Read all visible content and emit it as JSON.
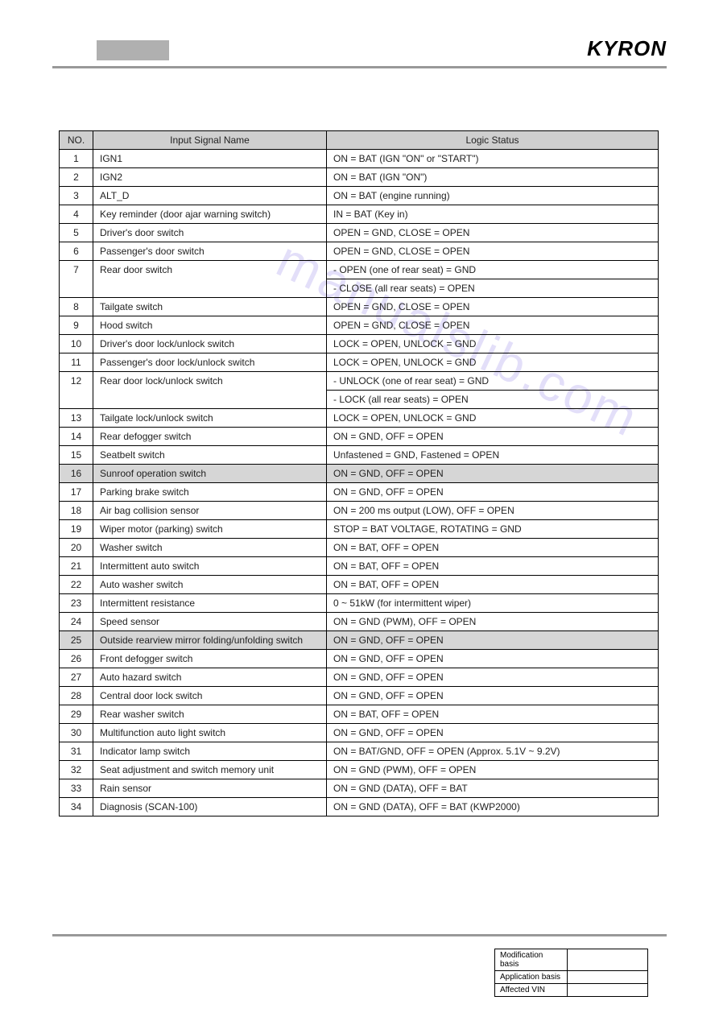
{
  "header": {
    "brand": "KYRON"
  },
  "table": {
    "columns": [
      "NO.",
      "Input Signal Name",
      "Logic Status"
    ],
    "rows": [
      {
        "no": "1",
        "name": "IGN1",
        "status": "ON = BAT (IGN \"ON\" or \"START\")"
      },
      {
        "no": "2",
        "name": "IGN2",
        "status": "ON = BAT (IGN \"ON\")"
      },
      {
        "no": "3",
        "name": "ALT_D",
        "status": "ON = BAT (engine running)"
      },
      {
        "no": "4",
        "name": "Key reminder (door ajar warning switch)",
        "status": "IN = BAT (Key in)"
      },
      {
        "no": "5",
        "name": "Driver's door switch",
        "status": "OPEN = GND, CLOSE = OPEN"
      },
      {
        "no": "6",
        "name": "Passenger's door switch",
        "status": "OPEN = GND, CLOSE = OPEN"
      },
      {
        "no": "7",
        "name": "Rear door switch",
        "status": "- OPEN (one of rear seat) = GND",
        "hasCont": true
      },
      {
        "no": "",
        "name": "",
        "status": "- CLOSE (all rear seats) = OPEN",
        "cont": true
      },
      {
        "no": "8",
        "name": "Tailgate switch",
        "status": "OPEN = GND, CLOSE = OPEN"
      },
      {
        "no": "9",
        "name": "Hood switch",
        "status": "OPEN = GND, CLOSE = OPEN"
      },
      {
        "no": "10",
        "name": "Driver's door lock/unlock switch",
        "status": "LOCK = OPEN, UNLOCK = GND"
      },
      {
        "no": "11",
        "name": "Passenger's door lock/unlock switch",
        "status": "LOCK = OPEN, UNLOCK = GND"
      },
      {
        "no": "12",
        "name": "Rear door lock/unlock switch",
        "status": "- UNLOCK (one of rear seat) = GND",
        "hasCont": true
      },
      {
        "no": "",
        "name": "",
        "status": "- LOCK (all rear seats) = OPEN",
        "cont": true
      },
      {
        "no": "13",
        "name": "Tailgate lock/unlock switch",
        "status": "LOCK = OPEN, UNLOCK = GND"
      },
      {
        "no": "14",
        "name": "Rear defogger switch",
        "status": "ON = GND, OFF = OPEN"
      },
      {
        "no": "15",
        "name": "Seatbelt switch",
        "status": "Unfastened = GND, Fastened = OPEN"
      },
      {
        "no": "16",
        "name": "Sunroof operation switch",
        "status": "ON = GND, OFF = OPEN",
        "shaded": true
      },
      {
        "no": "17",
        "name": "Parking brake switch",
        "status": "ON = GND, OFF = OPEN"
      },
      {
        "no": "18",
        "name": "Air bag collision sensor",
        "status": "ON = 200 ms output (LOW), OFF = OPEN"
      },
      {
        "no": "19",
        "name": "Wiper motor (parking) switch",
        "status": "STOP = BAT VOLTAGE, ROTATING = GND"
      },
      {
        "no": "20",
        "name": "Washer switch",
        "status": "ON = BAT, OFF = OPEN"
      },
      {
        "no": "21",
        "name": "Intermittent auto switch",
        "status": "ON = BAT, OFF = OPEN"
      },
      {
        "no": "22",
        "name": "Auto washer switch",
        "status": "ON = BAT, OFF = OPEN"
      },
      {
        "no": "23",
        "name": "Intermittent resistance",
        "status": "0 ~ 51kW  (for intermittent wiper)"
      },
      {
        "no": "24",
        "name": "Speed sensor",
        "status": "ON = GND (PWM), OFF = OPEN"
      },
      {
        "no": "25",
        "name": "Outside rearview mirror folding/unfolding switch",
        "status": "ON = GND, OFF = OPEN",
        "shaded": true
      },
      {
        "no": "26",
        "name": "Front defogger switch",
        "status": "ON = GND, OFF = OPEN"
      },
      {
        "no": "27",
        "name": "Auto hazard switch",
        "status": "ON = GND, OFF = OPEN"
      },
      {
        "no": "28",
        "name": "Central door lock switch",
        "status": "ON = GND, OFF = OPEN"
      },
      {
        "no": "29",
        "name": "Rear washer switch",
        "status": "ON = BAT, OFF = OPEN"
      },
      {
        "no": "30",
        "name": "Multifunction auto light switch",
        "status": "ON = GND, OFF = OPEN"
      },
      {
        "no": "31",
        "name": "Indicator lamp switch",
        "status": "ON = BAT/GND, OFF = OPEN (Approx. 5.1V ~ 9.2V)"
      },
      {
        "no": "32",
        "name": "Seat adjustment and switch memory unit",
        "status": "ON = GND (PWM), OFF = OPEN"
      },
      {
        "no": "33",
        "name": "Rain sensor",
        "status": "ON = GND (DATA), OFF = BAT"
      },
      {
        "no": "34",
        "name": "Diagnosis (SCAN-100)",
        "status": "ON = GND (DATA), OFF = BAT (KWP2000)"
      }
    ]
  },
  "watermark": "manualslib.com",
  "footer": {
    "rows": [
      {
        "label": "Modification basis",
        "value": ""
      },
      {
        "label": "Application basis",
        "value": ""
      },
      {
        "label": "Affected VIN",
        "value": ""
      }
    ]
  }
}
